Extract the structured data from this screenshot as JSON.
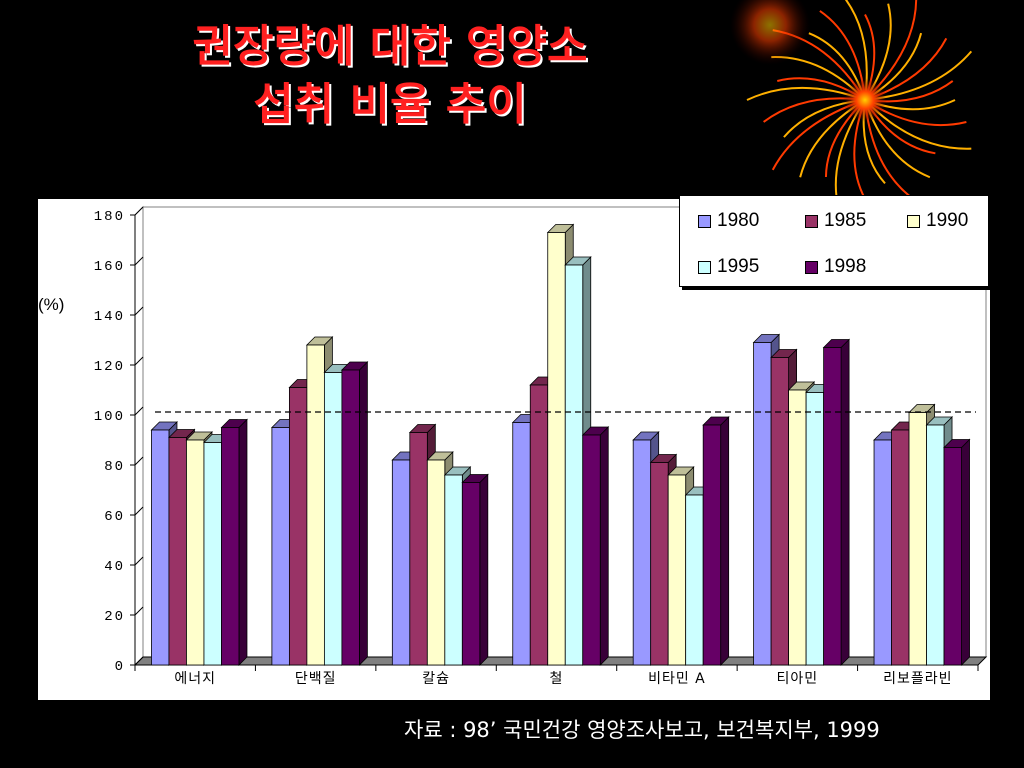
{
  "slide": {
    "title_line1": "권장량에 대한 영양소",
    "title_line2": "섭취 비율 추이",
    "source": "자료 : 98’ 국민건강 영양조사보고, 보건복지부, 1999"
  },
  "colors": {
    "background": "#000000",
    "title": "#ff2020",
    "series": [
      "#9999ff",
      "#993366",
      "#ffffcc",
      "#ccffff",
      "#660066"
    ]
  },
  "chart_data": {
    "type": "bar",
    "ylabel": "(%)",
    "ylim": [
      0,
      180
    ],
    "yticks": [
      0,
      20,
      40,
      60,
      80,
      100,
      120,
      140,
      160,
      180
    ],
    "reference_line": 100,
    "categories": [
      "에너지",
      "단백질",
      "칼슘",
      "철",
      "비타민 A",
      "티아민",
      "리보플라빈"
    ],
    "series": [
      {
        "name": "1980",
        "values": [
          94,
          95,
          82,
          97,
          90,
          129,
          90
        ]
      },
      {
        "name": "1985",
        "values": [
          91,
          111,
          93,
          112,
          81,
          123,
          94
        ]
      },
      {
        "name": "1990",
        "values": [
          90,
          128,
          82,
          173,
          76,
          110,
          101
        ]
      },
      {
        "name": "1995",
        "values": [
          89,
          117,
          76,
          160,
          68,
          109,
          96
        ]
      },
      {
        "name": "1998",
        "values": [
          95,
          118,
          73,
          92,
          96,
          127,
          87
        ]
      }
    ],
    "legend_position": "top-right",
    "grid": false
  }
}
